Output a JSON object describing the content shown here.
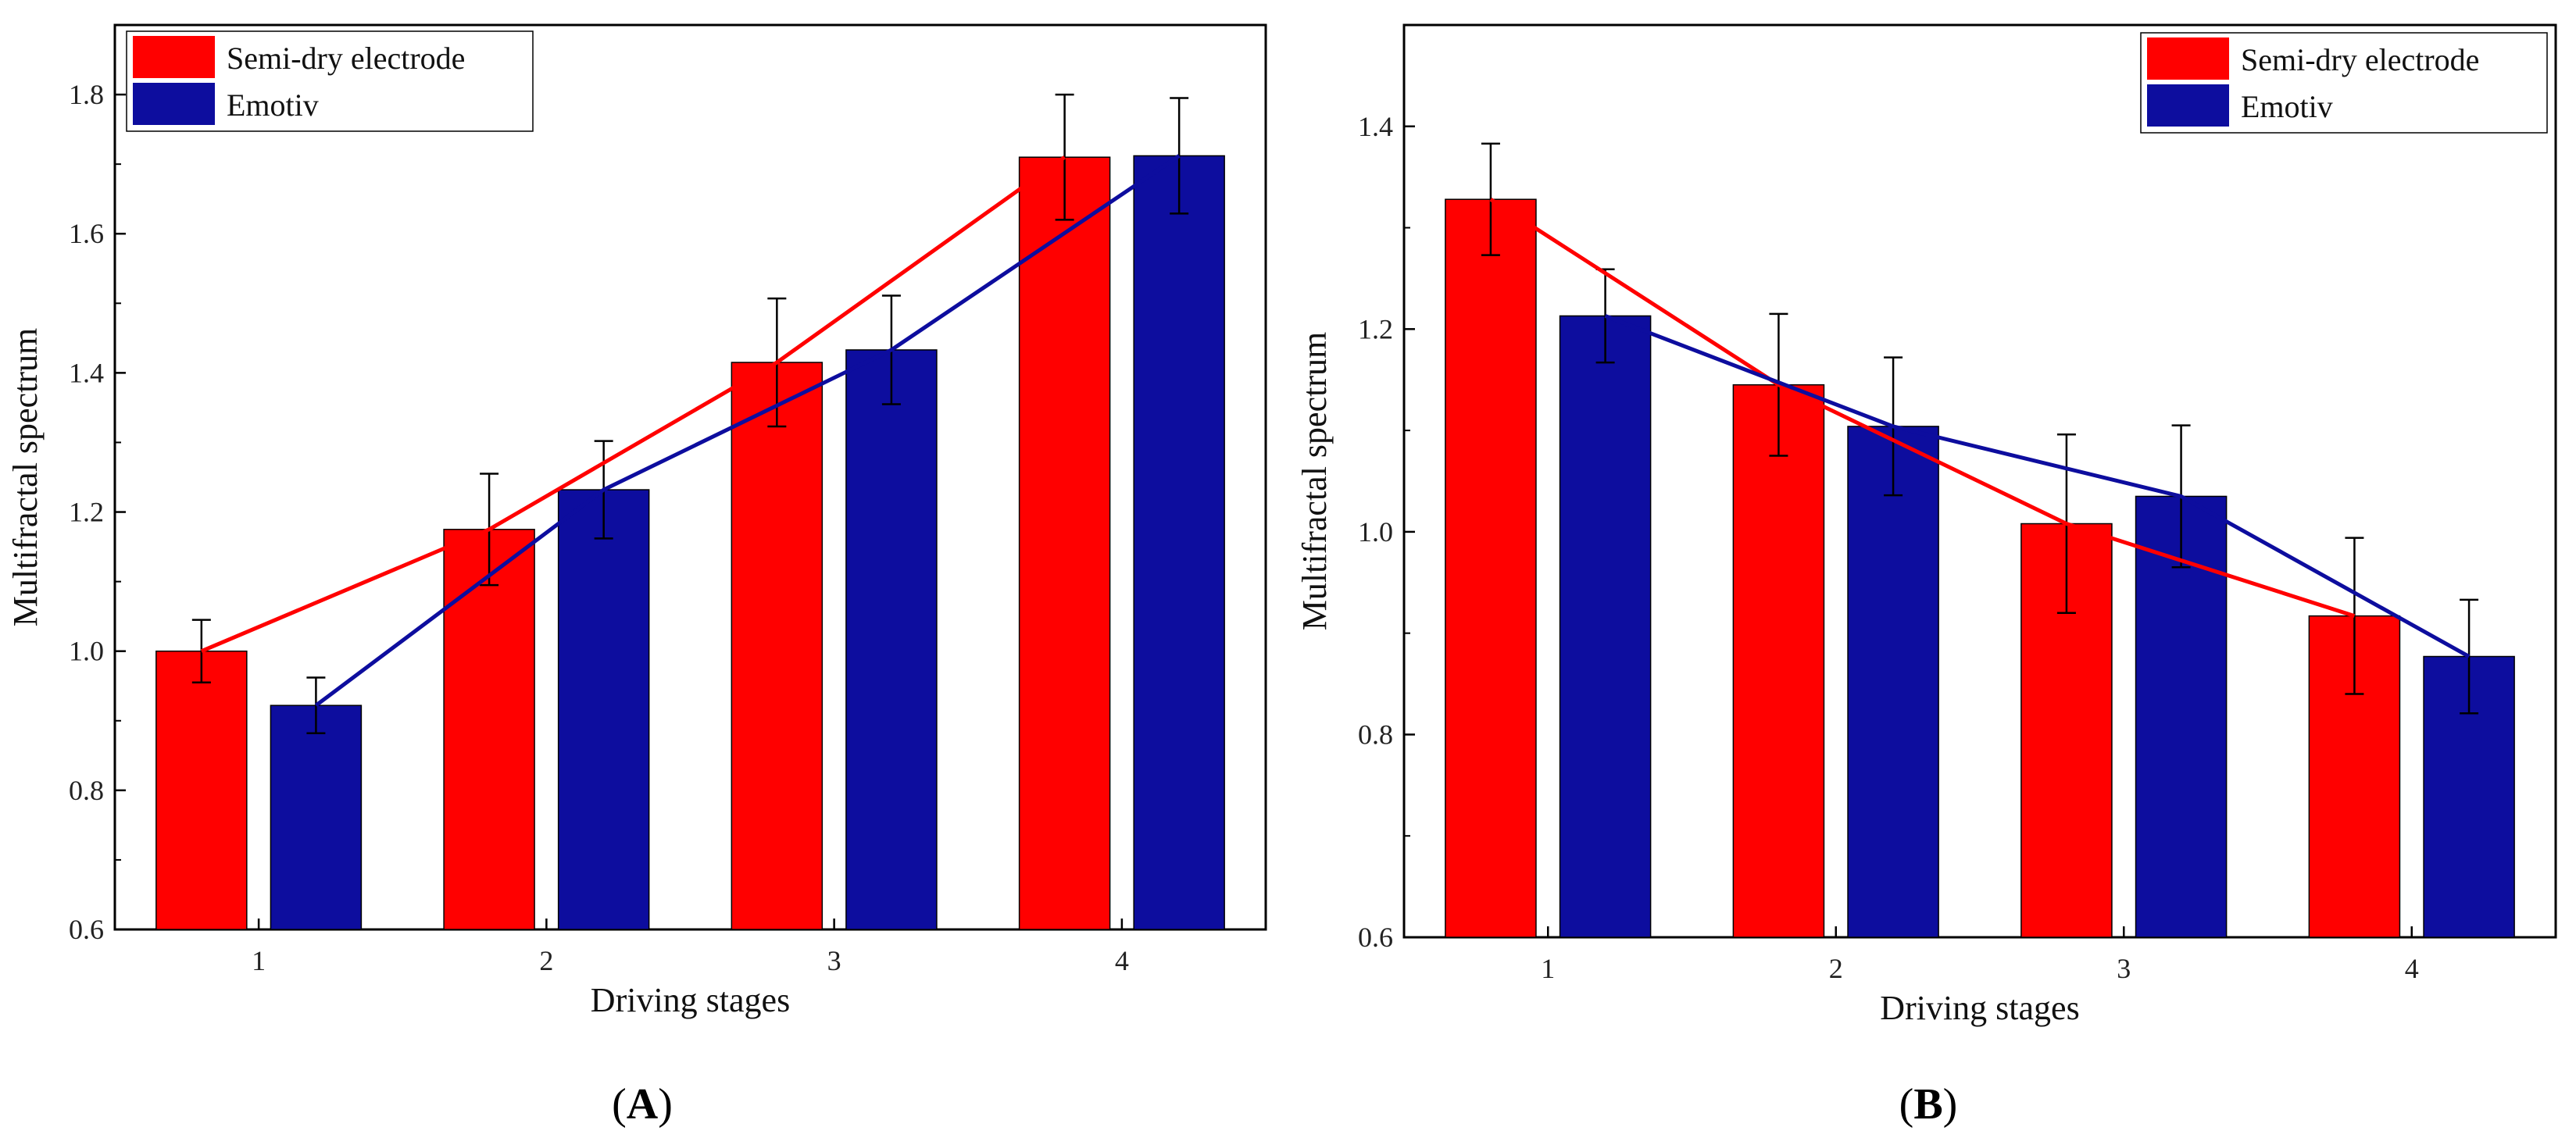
{
  "chart_data": [
    {
      "type": "bar",
      "panel_label_prefix": "(",
      "panel_label_letter": "A",
      "panel_label_suffix": ")",
      "xlabel": "Driving stages",
      "ylabel": "Multifractal spectrum",
      "categories": [
        "1",
        "2",
        "3",
        "4"
      ],
      "ylim": [
        0.6,
        1.9
      ],
      "yticks": [
        "0.6",
        "0.8",
        "1.0",
        "1.2",
        "1.4",
        "1.6",
        "1.8"
      ],
      "legend_position": "top-left",
      "grid": false,
      "overlay_lines": true,
      "series": [
        {
          "name": "Semi-dry electrode",
          "color": "#ff0000",
          "values": [
            1.0,
            1.175,
            1.415,
            1.71
          ],
          "errors": [
            0.045,
            0.08,
            0.092,
            0.09
          ]
        },
        {
          "name": "Emotiv",
          "color": "#0d0d9e",
          "values": [
            0.922,
            1.232,
            1.433,
            1.712
          ],
          "errors": [
            0.04,
            0.07,
            0.078,
            0.083
          ]
        }
      ]
    },
    {
      "type": "bar",
      "panel_label_prefix": "(",
      "panel_label_letter": "B",
      "panel_label_suffix": ")",
      "xlabel": "Driving stages",
      "ylabel": "Multifractal spectrum",
      "categories": [
        "1",
        "2",
        "3",
        "4"
      ],
      "ylim": [
        0.6,
        1.5
      ],
      "yticks": [
        "0.6",
        "0.8",
        "1.0",
        "1.2",
        "1.4"
      ],
      "legend_position": "top-right",
      "grid": false,
      "overlay_lines": true,
      "series": [
        {
          "name": "Semi-dry electrode",
          "color": "#ff0000",
          "values": [
            1.328,
            1.145,
            1.008,
            0.917
          ],
          "errors": [
            0.055,
            0.07,
            0.088,
            0.077
          ]
        },
        {
          "name": "Emotiv",
          "color": "#0d0d9e",
          "values": [
            1.213,
            1.104,
            1.035,
            0.877
          ],
          "errors": [
            0.046,
            0.068,
            0.07,
            0.056
          ]
        }
      ]
    }
  ]
}
